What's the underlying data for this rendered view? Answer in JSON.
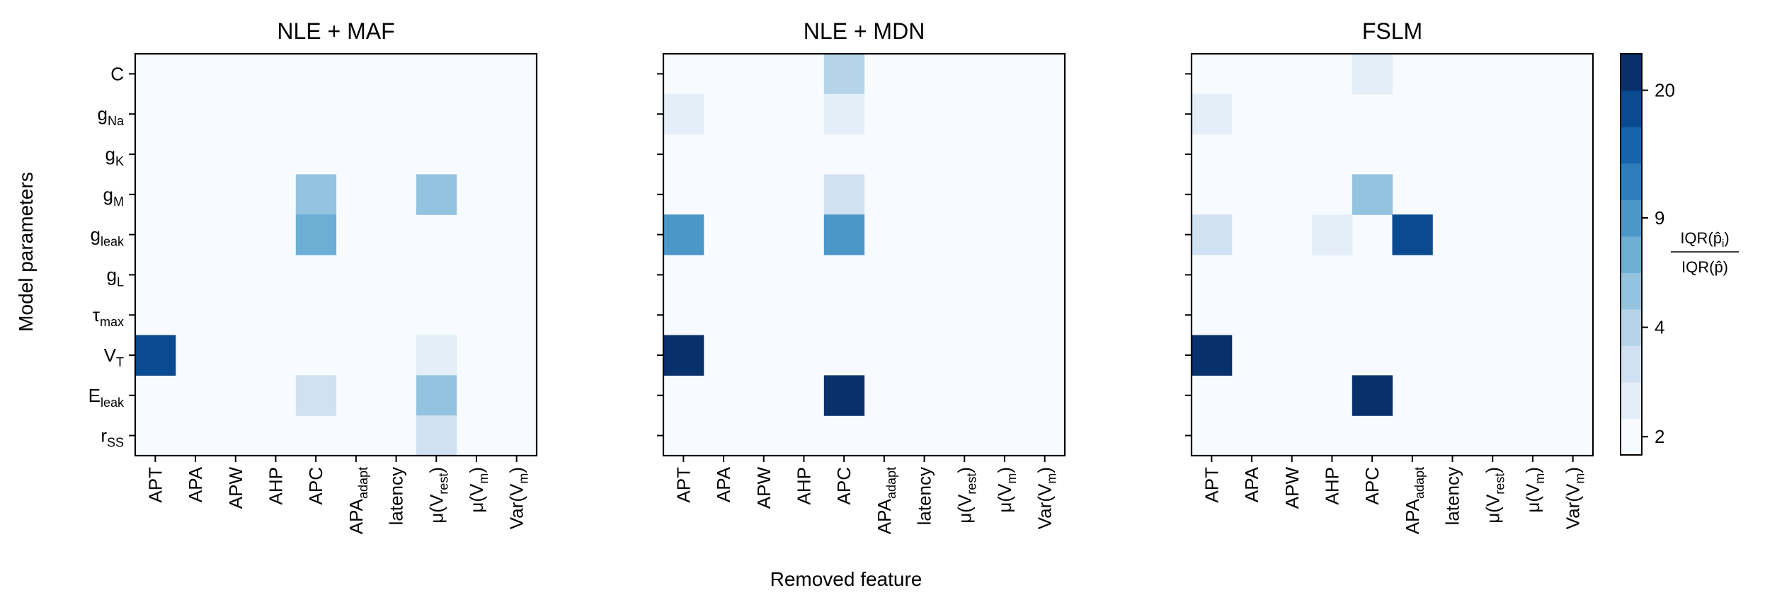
{
  "chart_data": {
    "type": "heatmap",
    "ylabel": "Model parameters",
    "xlabel": "Removed feature",
    "parameters": [
      {
        "base": "C",
        "sub": ""
      },
      {
        "base": "g",
        "sub": "Na"
      },
      {
        "base": "g",
        "sub": "K"
      },
      {
        "base": "g",
        "sub": "M"
      },
      {
        "base": "g",
        "sub": "leak"
      },
      {
        "base": "g",
        "sub": "L"
      },
      {
        "base": "τ",
        "sub": "max"
      },
      {
        "base": "V",
        "sub": "T"
      },
      {
        "base": "E",
        "sub": "leak"
      },
      {
        "base": "r",
        "sub": "SS"
      }
    ],
    "features": [
      {
        "base": "APT",
        "sub": "",
        "close": ""
      },
      {
        "base": "APA",
        "sub": "",
        "close": ""
      },
      {
        "base": "APW",
        "sub": "",
        "close": ""
      },
      {
        "base": "AHP",
        "sub": "",
        "close": ""
      },
      {
        "base": "APC",
        "sub": "",
        "close": ""
      },
      {
        "base": "APA",
        "sub": "adapt",
        "close": ""
      },
      {
        "base": "latency",
        "sub": "",
        "close": ""
      },
      {
        "base": "μ(V",
        "sub": "rest",
        "close": ")"
      },
      {
        "base": "μ(V",
        "sub": "m",
        "close": ")"
      },
      {
        "base": "Var(V",
        "sub": "m",
        "close": ")"
      }
    ],
    "panels": [
      {
        "title": "NLE + MAF",
        "values": [
          [
            0,
            0,
            0,
            0,
            0,
            0,
            0,
            0,
            0,
            0
          ],
          [
            0,
            0,
            0,
            0,
            0,
            0,
            0,
            0,
            0,
            0
          ],
          [
            0,
            0,
            0,
            0,
            0,
            0,
            0,
            0,
            0,
            0
          ],
          [
            0,
            0,
            0,
            0,
            4,
            0,
            0,
            4,
            0,
            0
          ],
          [
            0,
            0,
            0,
            0,
            5,
            0,
            0,
            0,
            0,
            0
          ],
          [
            0,
            0,
            0,
            0,
            0,
            0,
            0,
            0,
            0,
            0
          ],
          [
            0,
            0,
            0,
            0,
            0,
            0,
            0,
            0,
            0,
            0
          ],
          [
            9,
            0,
            0,
            0,
            0,
            0,
            0,
            1,
            0,
            0
          ],
          [
            0,
            0,
            0,
            0,
            2,
            0,
            0,
            4,
            0,
            0
          ],
          [
            0,
            0,
            0,
            0,
            0,
            0,
            0,
            2,
            0,
            0
          ]
        ]
      },
      {
        "title": "NLE + MDN",
        "values": [
          [
            0,
            0,
            0,
            0,
            3,
            0,
            0,
            0,
            0,
            0
          ],
          [
            1,
            0,
            0,
            0,
            1,
            0,
            0,
            0,
            0,
            0
          ],
          [
            0,
            0,
            0,
            0,
            0,
            0,
            0,
            0,
            0,
            0
          ],
          [
            0,
            0,
            0,
            0,
            2,
            0,
            0,
            0,
            0,
            0
          ],
          [
            6,
            0,
            0,
            0,
            6,
            0,
            0,
            0,
            0,
            0
          ],
          [
            0,
            0,
            0,
            0,
            0,
            0,
            0,
            0,
            0,
            0
          ],
          [
            0,
            0,
            0,
            0,
            0,
            0,
            0,
            0,
            0,
            0
          ],
          [
            10,
            0,
            0,
            0,
            0,
            0,
            0,
            0,
            0,
            0
          ],
          [
            0,
            0,
            0,
            0,
            10,
            0,
            0,
            0,
            0,
            0
          ],
          [
            0,
            0,
            0,
            0,
            0,
            0,
            0,
            0,
            0,
            0
          ]
        ]
      },
      {
        "title": "FSLM",
        "values": [
          [
            0,
            0,
            0,
            0,
            1,
            0,
            0,
            0,
            0,
            0
          ],
          [
            1,
            0,
            0,
            0,
            0,
            0,
            0,
            0,
            0,
            0
          ],
          [
            0,
            0,
            0,
            0,
            0,
            0,
            0,
            0,
            0,
            0
          ],
          [
            0,
            0,
            0,
            0,
            4,
            0,
            0,
            0,
            0,
            0
          ],
          [
            2,
            0,
            0,
            1,
            0,
            9,
            0,
            0,
            0,
            0
          ],
          [
            0,
            0,
            0,
            0,
            0,
            0,
            0,
            0,
            0,
            0
          ],
          [
            0,
            0,
            0,
            0,
            0,
            0,
            0,
            0,
            0,
            0
          ],
          [
            10,
            0,
            0,
            0,
            0,
            0,
            0,
            0,
            0,
            0
          ],
          [
            0,
            0,
            0,
            0,
            10,
            0,
            0,
            0,
            0,
            0
          ],
          [
            0,
            0,
            0,
            0,
            0,
            0,
            0,
            0,
            0,
            0
          ]
        ]
      }
    ],
    "colorbar": {
      "label_numerator": "IQR(p̂",
      "label_numerator_sub": "i",
      "label_numerator_close": ")",
      "label_denominator": "IQR(p̂)",
      "levels": [
        "#f7fbff",
        "#e3eef9",
        "#cfe1f2",
        "#b5d4e9",
        "#93c3df",
        "#6daed5",
        "#4b97c9",
        "#2f7ebc",
        "#1864aa",
        "#0a4a90",
        "#08306b"
      ],
      "ticks": [
        {
          "label": "2",
          "level": 0
        },
        {
          "label": "4",
          "level": 3
        },
        {
          "label": "9",
          "level": 6
        },
        {
          "label": "20",
          "level": 9.5
        }
      ]
    }
  }
}
